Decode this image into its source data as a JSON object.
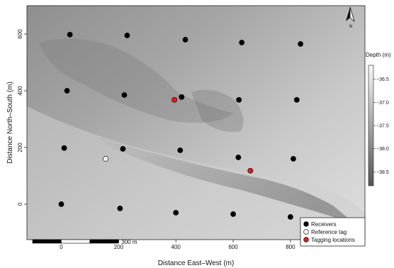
{
  "chart_data": {
    "type": "scatter",
    "xlabel": "Distance East–West (m)",
    "ylabel": "Distance North–South (m)",
    "xlim": [
      -120,
      1060
    ],
    "ylim": [
      -125,
      700
    ],
    "xticks": [
      0,
      200,
      400,
      600,
      800
    ],
    "yticks": [
      0,
      200,
      400,
      600
    ],
    "xtick_labels": [
      "0",
      "200",
      "400",
      "600",
      "800"
    ],
    "ytick_labels": [
      "0",
      "200",
      "400",
      "600"
    ],
    "scalebar": {
      "label": "300 m",
      "length_m": 300
    },
    "north_arrow": {
      "label": "N",
      "icon": "north-arrow-icon"
    },
    "colorbar": {
      "title": "Depth (m)",
      "range": [
        -38.8,
        -36.2
      ],
      "ticks": [
        -36.5,
        -37.0,
        -37.5,
        -38.0,
        -38.5
      ],
      "tick_labels": [
        "−36.5",
        "−37.0",
        "−37.5",
        "−38.0",
        "−38.5"
      ],
      "color_light": "#f7f7f7",
      "color_dark": "#555555"
    },
    "legend_position": "bottom-right",
    "series": [
      {
        "name": "Receivers",
        "color": "#000000",
        "points": [
          [
            30,
            598
          ],
          [
            230,
            595
          ],
          [
            433,
            580
          ],
          [
            630,
            570
          ],
          [
            835,
            565
          ],
          [
            20,
            400
          ],
          [
            220,
            385
          ],
          [
            420,
            378
          ],
          [
            620,
            368
          ],
          [
            822,
            368
          ],
          [
            10,
            198
          ],
          [
            215,
            195
          ],
          [
            415,
            190
          ],
          [
            618,
            165
          ],
          [
            810,
            160
          ],
          [
            0,
            0
          ],
          [
            205,
            -15
          ],
          [
            400,
            -30
          ],
          [
            600,
            -35
          ],
          [
            800,
            -45
          ]
        ]
      },
      {
        "name": "Reference tag",
        "color": "#ffffff",
        "points": [
          [
            155,
            160
          ]
        ]
      },
      {
        "name": "Tagging locations",
        "color": "#e31a1c",
        "points": [
          [
            395,
            368
          ],
          [
            660,
            118
          ]
        ]
      }
    ]
  }
}
